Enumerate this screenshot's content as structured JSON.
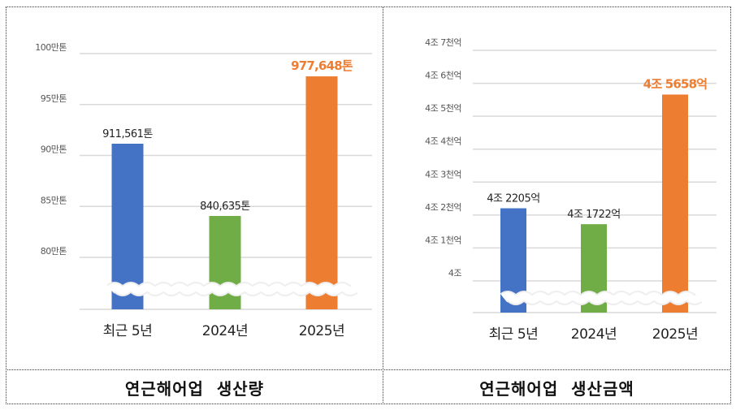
{
  "colors": {
    "blue": "#4472C4",
    "green": "#70AD47",
    "orange": "#ED7D31",
    "grid": "#D9D9D9"
  },
  "captions": [
    "연근해어업  생산량",
    "연근해어업  생산금액"
  ],
  "chart_data": [
    {
      "type": "bar",
      "title": "연근해어업 생산량",
      "categories": [
        "최근 5년",
        "2024년",
        "2025년"
      ],
      "values": [
        911561,
        840635,
        977648
      ],
      "data_labels": [
        "911,561톤",
        "840,635톤",
        "977,648톤"
      ],
      "y_ticks": [
        800000,
        850000,
        900000,
        950000,
        1000000
      ],
      "y_tick_labels": [
        "80만톤",
        "85만톤",
        "90만톤",
        "95만톤",
        "100만톤"
      ],
      "ylim": [
        750000,
        1000000
      ],
      "axis_break": true,
      "grid": true
    },
    {
      "type": "bar",
      "title": "연근해어업 생산금액",
      "categories": [
        "최근 5년",
        "2024년",
        "2025년"
      ],
      "values": [
        42205,
        41722,
        45658
      ],
      "units": "억원",
      "data_labels": [
        "4조 2205억",
        "4조 1722억",
        "4조 5658억"
      ],
      "y_ticks": [
        40000,
        41000,
        42000,
        43000,
        44000,
        45000,
        46000,
        47000
      ],
      "y_tick_labels": [
        "4조",
        "4조 1천억",
        "4조 2천억",
        "4조 3천억",
        "4조 4천억",
        "4조 5천억",
        "4조 6천억",
        "4조 7천억"
      ],
      "ylim": [
        39000,
        47000
      ],
      "axis_break": true,
      "grid": true
    }
  ]
}
